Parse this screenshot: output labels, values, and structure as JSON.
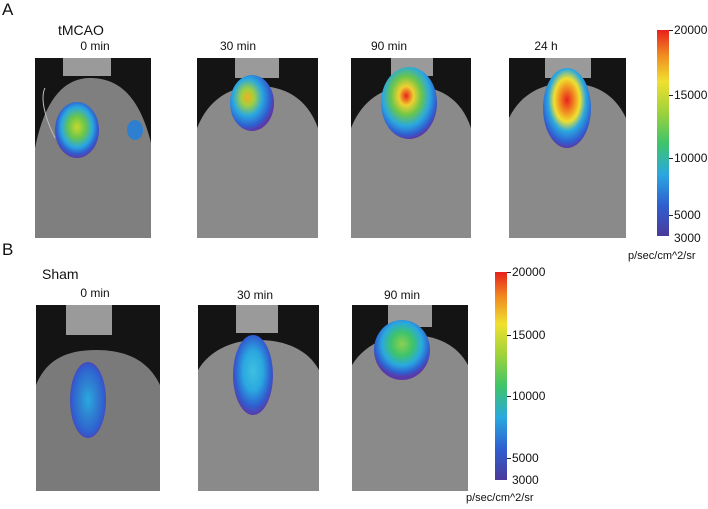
{
  "panels": [
    {
      "letter": "A",
      "group": "tMCAO",
      "times": [
        "0 min",
        "30 min",
        "90 min",
        "24 h"
      ],
      "colorbar": {
        "max": "20000",
        "ticks": [
          "15000",
          "10000",
          "5000"
        ],
        "min": "3000",
        "unit": "p/sec/cm^2/sr"
      }
    },
    {
      "letter": "B",
      "group": "Sham",
      "times": [
        "0 min",
        "30 min",
        "90 min"
      ],
      "colorbar": {
        "max": "20000",
        "ticks": [
          "15000",
          "10000",
          "5000"
        ],
        "min": "3000",
        "unit": "p/sec/cm^2/sr"
      }
    }
  ],
  "colors": {
    "scale": [
      "#4a3a9a",
      "#2f5fd0",
      "#2aa8e0",
      "#3ec46a",
      "#9ed23a",
      "#f0e030",
      "#f08a20",
      "#e8201c"
    ],
    "background": "#141414",
    "fur": "#8a8a8a"
  }
}
